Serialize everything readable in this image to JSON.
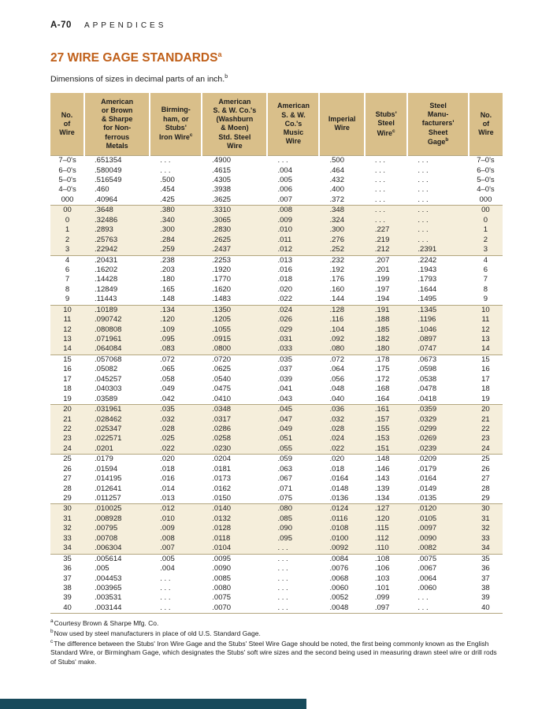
{
  "page": {
    "page_label": "A-70",
    "section_label": "APPENDICES",
    "title": "27 WIRE GAGE STANDARDS",
    "title_sup": "a",
    "subtitle": "Dimensions of sizes in decimal parts of an inch.",
    "subtitle_sup": "b"
  },
  "colors": {
    "title_accent": "#c0601a",
    "table_header_bg": "#d9bf8a",
    "row_band_bg": "#f5eedb",
    "footer_bar": "#174a5b"
  },
  "table": {
    "headers": [
      {
        "text": "No.\nof\nWire",
        "sup": ""
      },
      {
        "text": "American\nor Brown\n& Sharpe\nfor Non-\nferrous\nMetals",
        "sup": ""
      },
      {
        "text": "Birming-\nham, or\nStubs'\nIron Wire",
        "sup": "c"
      },
      {
        "text": "American\nS. & W. Co.'s\n(Washburn\n& Moen)\nStd. Steel\nWire",
        "sup": ""
      },
      {
        "text": "American\nS. & W.\nCo.'s\nMusic\nWire",
        "sup": ""
      },
      {
        "text": "Imperial\nWire",
        "sup": ""
      },
      {
        "text": "Stubs'\nSteel\nWire",
        "sup": "c"
      },
      {
        "text": "Steel\nManu-\nfacturers'\nSheet\nGage",
        "sup": "b"
      },
      {
        "text": "No.\nof\nWire",
        "sup": ""
      }
    ],
    "groups": [
      [
        [
          "7–0's",
          ".651354",
          ". . .",
          ".4900",
          ". . .",
          ".500",
          ". . .",
          ". . .",
          "7–0's"
        ],
        [
          "6–0's",
          ".580049",
          ". . .",
          ".4615",
          ".004",
          ".464",
          ". . .",
          ". . .",
          "6–0's"
        ],
        [
          "5–0's",
          ".516549",
          ".500",
          ".4305",
          ".005",
          ".432",
          ". . .",
          ". . .",
          "5–0's"
        ],
        [
          "4–0's",
          ".460",
          ".454",
          ".3938",
          ".006",
          ".400",
          ". . .",
          ". . .",
          "4–0's"
        ],
        [
          "000",
          ".40964",
          ".425",
          ".3625",
          ".007",
          ".372",
          ". . .",
          ". . .",
          "000"
        ]
      ],
      [
        [
          "00",
          ".3648",
          ".380",
          ".3310",
          ".008",
          ".348",
          ". . .",
          ". . .",
          "00"
        ],
        [
          "0",
          ".32486",
          ".340",
          ".3065",
          ".009",
          ".324",
          ". . .",
          ". . .",
          "0"
        ],
        [
          "1",
          ".2893",
          ".300",
          ".2830",
          ".010",
          ".300",
          ".227",
          ". . .",
          "1"
        ],
        [
          "2",
          ".25763",
          ".284",
          ".2625",
          ".011",
          ".276",
          ".219",
          ". . .",
          "2"
        ],
        [
          "3",
          ".22942",
          ".259",
          ".2437",
          ".012",
          ".252",
          ".212",
          ".2391",
          "3"
        ]
      ],
      [
        [
          "4",
          ".20431",
          ".238",
          ".2253",
          ".013",
          ".232",
          ".207",
          ".2242",
          "4"
        ],
        [
          "6",
          ".16202",
          ".203",
          ".1920",
          ".016",
          ".192",
          ".201",
          ".1943",
          "6"
        ],
        [
          "7",
          ".14428",
          ".180",
          ".1770",
          ".018",
          ".176",
          ".199",
          ".1793",
          "7"
        ],
        [
          "8",
          ".12849",
          ".165",
          ".1620",
          ".020",
          ".160",
          ".197",
          ".1644",
          "8"
        ],
        [
          "9",
          ".11443",
          ".148",
          ".1483",
          ".022",
          ".144",
          ".194",
          ".1495",
          "9"
        ]
      ],
      [
        [
          "10",
          ".10189",
          ".134",
          ".1350",
          ".024",
          ".128",
          ".191",
          ".1345",
          "10"
        ],
        [
          "11",
          ".090742",
          ".120",
          ".1205",
          ".026",
          ".116",
          ".188",
          ".1196",
          "11"
        ],
        [
          "12",
          ".080808",
          ".109",
          ".1055",
          ".029",
          ".104",
          ".185",
          ".1046",
          "12"
        ],
        [
          "13",
          ".071961",
          ".095",
          ".0915",
          ".031",
          ".092",
          ".182",
          ".0897",
          "13"
        ],
        [
          "14",
          ".064084",
          ".083",
          ".0800",
          ".033",
          ".080",
          ".180",
          ".0747",
          "14"
        ]
      ],
      [
        [
          "15",
          ".057068",
          ".072",
          ".0720",
          ".035",
          ".072",
          ".178",
          ".0673",
          "15"
        ],
        [
          "16",
          ".05082",
          ".065",
          ".0625",
          ".037",
          ".064",
          ".175",
          ".0598",
          "16"
        ],
        [
          "17",
          ".045257",
          ".058",
          ".0540",
          ".039",
          ".056",
          ".172",
          ".0538",
          "17"
        ],
        [
          "18",
          ".040303",
          ".049",
          ".0475",
          ".041",
          ".048",
          ".168",
          ".0478",
          "18"
        ],
        [
          "19",
          ".03589",
          ".042",
          ".0410",
          ".043",
          ".040",
          ".164",
          ".0418",
          "19"
        ]
      ],
      [
        [
          "20",
          ".031961",
          ".035",
          ".0348",
          ".045",
          ".036",
          ".161",
          ".0359",
          "20"
        ],
        [
          "21",
          ".028462",
          ".032",
          ".0317",
          ".047",
          ".032",
          ".157",
          ".0329",
          "21"
        ],
        [
          "22",
          ".025347",
          ".028",
          ".0286",
          ".049",
          ".028",
          ".155",
          ".0299",
          "22"
        ],
        [
          "23",
          ".022571",
          ".025",
          ".0258",
          ".051",
          ".024",
          ".153",
          ".0269",
          "23"
        ],
        [
          "24",
          ".0201",
          ".022",
          ".0230",
          ".055",
          ".022",
          ".151",
          ".0239",
          "24"
        ]
      ],
      [
        [
          "25",
          ".0179",
          ".020",
          ".0204",
          ".059",
          ".020",
          ".148",
          ".0209",
          "25"
        ],
        [
          "26",
          ".01594",
          ".018",
          ".0181",
          ".063",
          ".018",
          ".146",
          ".0179",
          "26"
        ],
        [
          "27",
          ".014195",
          ".016",
          ".0173",
          ".067",
          ".0164",
          ".143",
          ".0164",
          "27"
        ],
        [
          "28",
          ".012641",
          ".014",
          ".0162",
          ".071",
          ".0148",
          ".139",
          ".0149",
          "28"
        ],
        [
          "29",
          ".011257",
          ".013",
          ".0150",
          ".075",
          ".0136",
          ".134",
          ".0135",
          "29"
        ]
      ],
      [
        [
          "30",
          ".010025",
          ".012",
          ".0140",
          ".080",
          ".0124",
          ".127",
          ".0120",
          "30"
        ],
        [
          "31",
          ".008928",
          ".010",
          ".0132",
          ".085",
          ".0116",
          ".120",
          ".0105",
          "31"
        ],
        [
          "32",
          ".00795",
          ".009",
          ".0128",
          ".090",
          ".0108",
          ".115",
          ".0097",
          "32"
        ],
        [
          "33",
          ".00708",
          ".008",
          ".0118",
          ".095",
          ".0100",
          ".112",
          ".0090",
          "33"
        ],
        [
          "34",
          ".006304",
          ".007",
          ".0104",
          ". . .",
          ".0092",
          ".110",
          ".0082",
          "34"
        ]
      ],
      [
        [
          "35",
          ".005614",
          ".005",
          ".0095",
          ". . .",
          ".0084",
          ".108",
          ".0075",
          "35"
        ],
        [
          "36",
          ".005",
          ".004",
          ".0090",
          ". . .",
          ".0076",
          ".106",
          ".0067",
          "36"
        ],
        [
          "37",
          ".004453",
          ". . .",
          ".0085",
          ". . .",
          ".0068",
          ".103",
          ".0064",
          "37"
        ],
        [
          "38",
          ".003965",
          ". . .",
          ".0080",
          ". . .",
          ".0060",
          ".101",
          ".0060",
          "38"
        ],
        [
          "39",
          ".003531",
          ". . .",
          ".0075",
          ". . .",
          ".0052",
          ".099",
          ". . .",
          "39"
        ],
        [
          "40",
          ".003144",
          ". . .",
          ".0070",
          ". . .",
          ".0048",
          ".097",
          ". . .",
          "40"
        ]
      ]
    ]
  },
  "footnotes": [
    {
      "sup": "a",
      "text": "Courtesy Brown & Sharpe Mfg. Co."
    },
    {
      "sup": "b",
      "text": "Now used by steel manufacturers in place of old U.S. Standard Gage."
    },
    {
      "sup": "c",
      "text": "The difference between the Stubs' Iron Wire Gage and the Stubs' Steel Wire Gage should be noted, the first being commonly known as the English Standard Wire, or Birmingham Gage, which designates the Stubs' soft wire sizes and the second being used in measuring drawn steel wire or drill rods of Stubs' make."
    }
  ]
}
